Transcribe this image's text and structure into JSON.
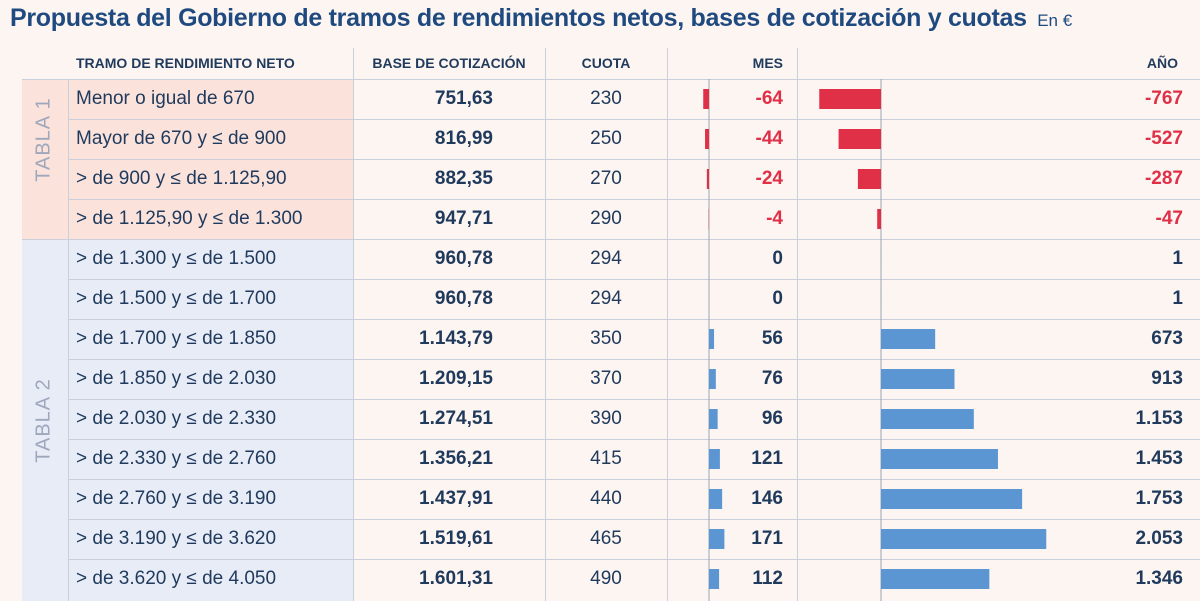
{
  "header": {
    "title": "Propuesta del Gobierno de tramos de rendimientos netos, bases de cotización y cuotas",
    "unit": "En €"
  },
  "columns": {
    "tramo": "TRAMO DE RENDIMIENTO NETO",
    "base": "BASE DE COTIZACIÓN",
    "cuota": "CUOTA",
    "mes": "MES",
    "anyo": "AÑO"
  },
  "groups": {
    "tabla1": "TABLA 1",
    "tabla2": "TABLA 2"
  },
  "colors": {
    "negative": "#e03048",
    "positive": "#5b96d2"
  },
  "chart_data": {
    "type": "table",
    "series": [
      {
        "name": "MES",
        "values": [
          -64,
          -44,
          -24,
          -4,
          0,
          0,
          56,
          76,
          96,
          121,
          146,
          171,
          112
        ]
      },
      {
        "name": "AÑO",
        "values": [
          -767,
          -527,
          -287,
          -47,
          1,
          1,
          673,
          913,
          1153,
          1453,
          1753,
          2053,
          1346
        ]
      }
    ],
    "rows": [
      {
        "tramo": "Menor o igual de 670",
        "base": "751,63",
        "cuota": "230",
        "mes": -64,
        "mes_label": "-64",
        "anyo": -767,
        "anyo_label": "-767"
      },
      {
        "tramo": "Mayor de 670 y ≤ de 900",
        "base": "816,99",
        "cuota": "250",
        "mes": -44,
        "mes_label": "-44",
        "anyo": -527,
        "anyo_label": "-527"
      },
      {
        "tramo": "> de 900 y ≤ de 1.125,90",
        "base": "882,35",
        "cuota": "270",
        "mes": -24,
        "mes_label": "-24",
        "anyo": -287,
        "anyo_label": "-287"
      },
      {
        "tramo": "> de 1.125,90 y ≤ de 1.300",
        "base": "947,71",
        "cuota": "290",
        "mes": -4,
        "mes_label": "-4",
        "anyo": -47,
        "anyo_label": "-47"
      },
      {
        "tramo": "> de 1.300 y ≤ de 1.500",
        "base": "960,78",
        "cuota": "294",
        "mes": 0,
        "mes_label": "0",
        "anyo": 1,
        "anyo_label": "1"
      },
      {
        "tramo": "> de 1.500 y ≤ de 1.700",
        "base": "960,78",
        "cuota": "294",
        "mes": 0,
        "mes_label": "0",
        "anyo": 1,
        "anyo_label": "1"
      },
      {
        "tramo": "> de 1.700 y ≤ de 1.850",
        "base": "1.143,79",
        "cuota": "350",
        "mes": 56,
        "mes_label": "56",
        "anyo": 673,
        "anyo_label": "673"
      },
      {
        "tramo": "> de 1.850 y ≤ de 2.030",
        "base": "1.209,15",
        "cuota": "370",
        "mes": 76,
        "mes_label": "76",
        "anyo": 913,
        "anyo_label": "913"
      },
      {
        "tramo": "> de 2.030 y ≤ de 2.330",
        "base": "1.274,51",
        "cuota": "390",
        "mes": 96,
        "mes_label": "96",
        "anyo": 1153,
        "anyo_label": "1.153"
      },
      {
        "tramo": "> de 2.330 y ≤ de 2.760",
        "base": "1.356,21",
        "cuota": "415",
        "mes": 121,
        "mes_label": "121",
        "anyo": 1453,
        "anyo_label": "1.453"
      },
      {
        "tramo": "> de 2.760 y ≤ de 3.190",
        "base": "1.437,91",
        "cuota": "440",
        "mes": 146,
        "mes_label": "146",
        "anyo": 1753,
        "anyo_label": "1.753"
      },
      {
        "tramo": "> de 3.190 y ≤ de 3.620",
        "base": "1.519,61",
        "cuota": "465",
        "mes": 171,
        "mes_label": "171",
        "anyo": 2053,
        "anyo_label": "2.053"
      },
      {
        "tramo": "> de 3.620 y ≤ de 4.050",
        "base": "1.601,31",
        "cuota": "490",
        "mes": 112,
        "mes_label": "112",
        "anyo": 1346,
        "anyo_label": "1.346"
      }
    ]
  }
}
